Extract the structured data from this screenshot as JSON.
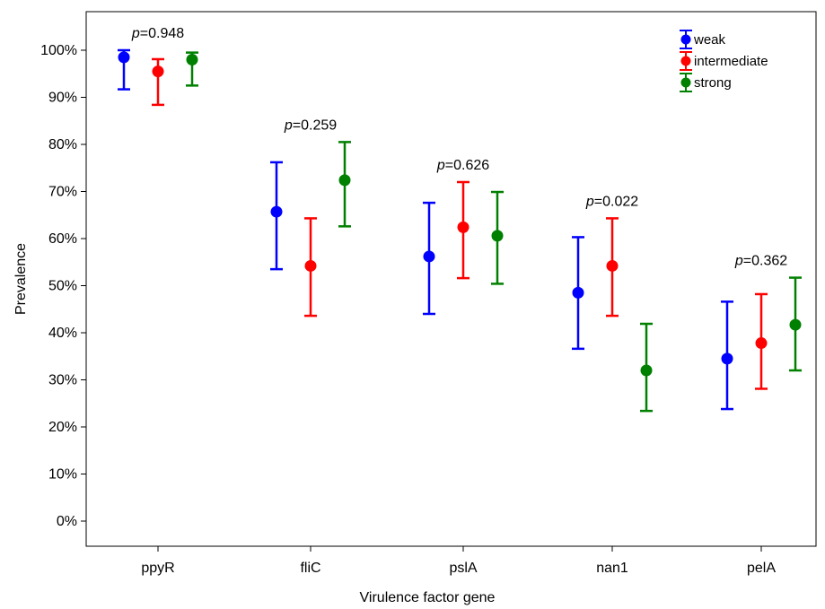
{
  "chart_data": {
    "type": "scatter",
    "subtype": "point-with-error-bars",
    "xlabel": "Virulence factor gene",
    "ylabel": "Prevalence",
    "categories": [
      "ppyR",
      "fliC",
      "pslA",
      "nan1",
      "pelA"
    ],
    "ylim": [
      -0.05,
      1.05
    ],
    "yticks": [
      0,
      0.1,
      0.2,
      0.3,
      0.4,
      0.5,
      0.6,
      0.7,
      0.8,
      0.9,
      1.0
    ],
    "ytick_labels": [
      "0%",
      "10%",
      "20%",
      "30%",
      "40%",
      "50%",
      "60%",
      "70%",
      "80%",
      "90%",
      "100%"
    ],
    "grid": false,
    "legend_position": "top-right",
    "series": [
      {
        "name": "weak",
        "color": "#0000ff",
        "values": [
          0.985,
          0.657,
          0.562,
          0.485,
          0.345
        ],
        "lower": [
          0.917,
          0.535,
          0.44,
          0.366,
          0.238
        ],
        "upper": [
          1.0,
          0.762,
          0.676,
          0.603,
          0.466
        ]
      },
      {
        "name": "intermediate",
        "color": "#ff0000",
        "values": [
          0.955,
          0.542,
          0.624,
          0.542,
          0.378
        ],
        "lower": [
          0.884,
          0.436,
          0.516,
          0.436,
          0.281
        ],
        "upper": [
          0.981,
          0.643,
          0.72,
          0.643,
          0.482
        ]
      },
      {
        "name": "strong",
        "color": "#008000",
        "values": [
          0.98,
          0.724,
          0.606,
          0.32,
          0.417
        ],
        "lower": [
          0.925,
          0.626,
          0.504,
          0.234,
          0.32
        ],
        "upper": [
          0.995,
          0.805,
          0.699,
          0.419,
          0.517
        ]
      }
    ],
    "annotations": [
      {
        "category": "ppyR",
        "label_italic": "p",
        "label_rest": "=0.948"
      },
      {
        "category": "fliC",
        "label_italic": "p",
        "label_rest": "=0.259"
      },
      {
        "category": "pslA",
        "label_italic": "p",
        "label_rest": "=0.626"
      },
      {
        "category": "nan1",
        "label_italic": "p",
        "label_rest": "=0.022"
      },
      {
        "category": "pelA",
        "label_italic": "p",
        "label_rest": "=0.362"
      }
    ]
  }
}
